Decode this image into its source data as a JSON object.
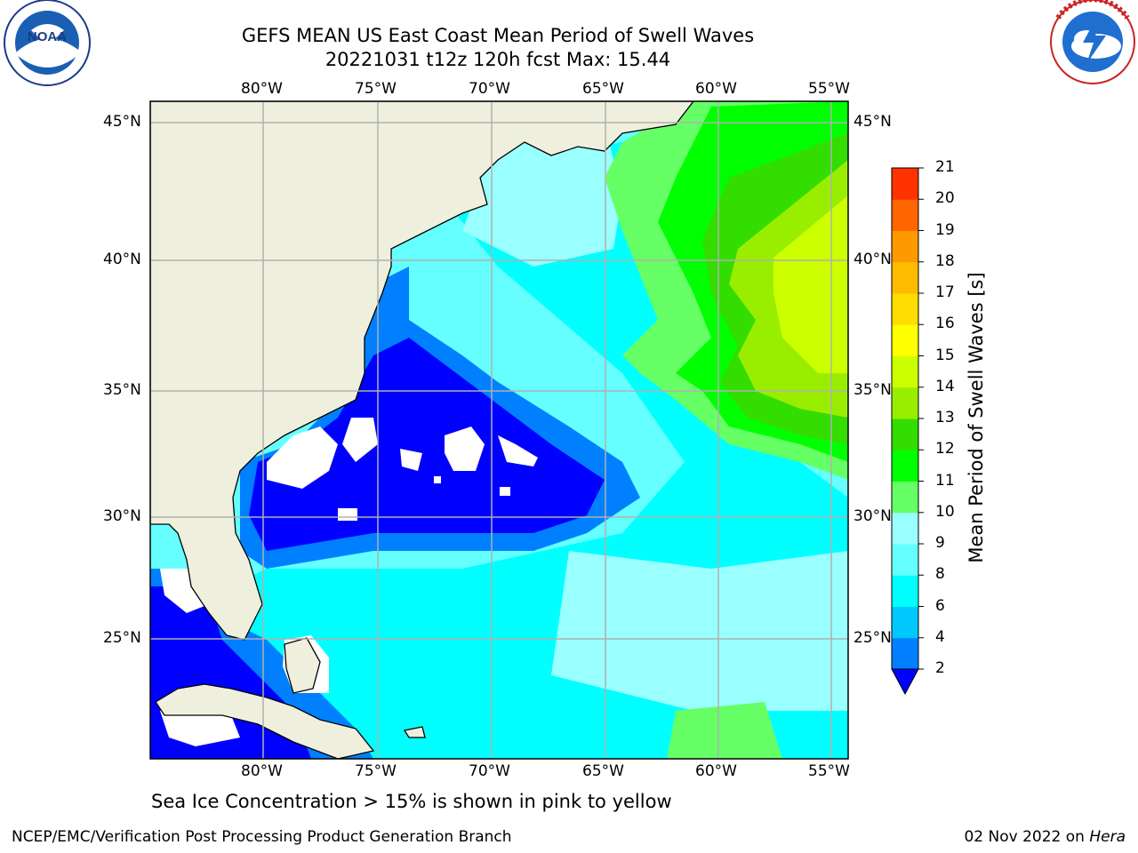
{
  "title_line1": "GEFS MEAN US East Coast Mean Period of Swell Waves",
  "title_line2": "20221031 t12z 120h fcst   Max: 15.44",
  "lon_labels": [
    "80°W",
    "75°W",
    "70°W",
    "65°W",
    "60°W",
    "55°W"
  ],
  "lat_labels": [
    "45°N",
    "40°N",
    "35°N",
    "30°N",
    "25°N"
  ],
  "colorbar": {
    "title": "Mean Period of Swell Waves [s]",
    "ticks": [
      "2",
      "4",
      "6",
      "8",
      "9",
      "10",
      "11",
      "12",
      "13",
      "14",
      "15",
      "16",
      "17",
      "18",
      "19",
      "20",
      "21"
    ],
    "colors": [
      "#0080ff",
      "#00c8ff",
      "#00ffff",
      "#66ffff",
      "#99ffff",
      "#66ff66",
      "#00ff00",
      "#33dd00",
      "#99ee00",
      "#ccff00",
      "#ffff00",
      "#ffdd00",
      "#ffbb00",
      "#ff9900",
      "#ff6600",
      "#ff3300"
    ],
    "below_color": "#0000ff"
  },
  "caption": "Sea Ice Concentration > 15% is shown in pink to yellow",
  "footer_left": "NCEP/EMC/Verification Post Processing Product Generation Branch",
  "footer_right_date": "02 Nov 2022 on ",
  "footer_right_machine": "Hera",
  "logos": {
    "left": {
      "name": "NOAA",
      "text": "NOAA",
      "ring_text": "NATIONAL OCEANIC AND ATMOSPHERIC ADMINISTRATION · U.S. DEPARTMENT OF COMMERCE"
    },
    "right": {
      "name": "National Weather Service",
      "ring_text": "NATIONAL WEATHER SERVICE"
    }
  }
}
